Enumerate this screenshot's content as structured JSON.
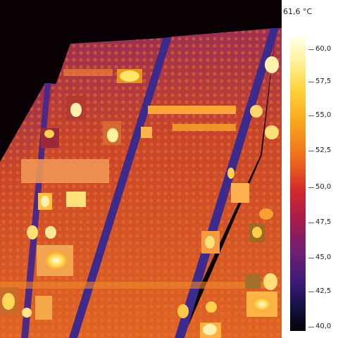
{
  "image": {
    "subject": "thermal-camera-view-of-solar-panels"
  },
  "legend": {
    "max_reading": "61,6 °C",
    "ticks": [
      "60,0",
      "57,5",
      "55,0",
      "52,5",
      "50,0",
      "47,5",
      "45,0",
      "42,5",
      "40,0"
    ],
    "gradient_top_color": "#ffffe8",
    "gradient_bottom_color": "#050208"
  },
  "colors": {
    "background": "#000000",
    "panel_base": "#c8452a",
    "panel_frame": "#3c2a8c",
    "hotspot": "#ffe27a"
  }
}
